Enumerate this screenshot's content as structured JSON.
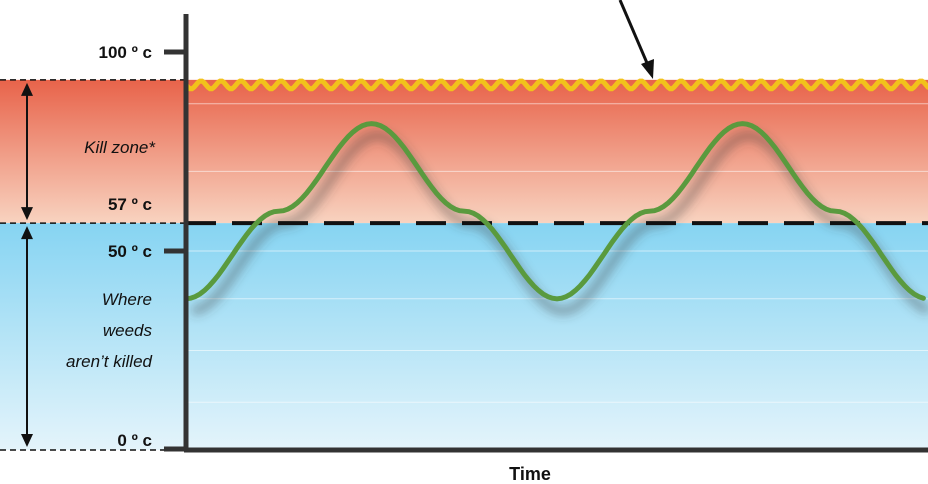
{
  "chart_data": {
    "type": "line",
    "xlabel": "Time",
    "ylabel": "",
    "ylim": [
      0,
      100
    ],
    "y_ticks": [
      {
        "value": 100,
        "label": "100 º c"
      },
      {
        "value": 50,
        "label": "50 º c"
      },
      {
        "value": 0,
        "label": "0 º c"
      }
    ],
    "threshold": {
      "value": 57,
      "label": "57 º c"
    },
    "surface_line_value": 93,
    "zones": {
      "kill": {
        "label": "Kill zone*",
        "from": 57,
        "to": 93
      },
      "safe": {
        "label_lines": [
          "Where",
          "weeds",
          "aren’t killed"
        ],
        "from": 0,
        "to": 57
      }
    },
    "series": [
      {
        "x": [
          0,
          0.5,
          1,
          1.5,
          2,
          2.5,
          3,
          3.5,
          4
        ],
        "y": [
          38,
          60,
          82,
          60,
          38,
          60,
          82,
          60,
          38
        ]
      }
    ],
    "colors": {
      "kill_top": "#e8634a",
      "kill_bottom": "#f8d3c0",
      "safe_top": "#86d4f2",
      "safe_bottom": "#e4f4fb",
      "wave": "#f2c21b",
      "curve": "#5a9a3e",
      "axis": "#333333"
    }
  }
}
